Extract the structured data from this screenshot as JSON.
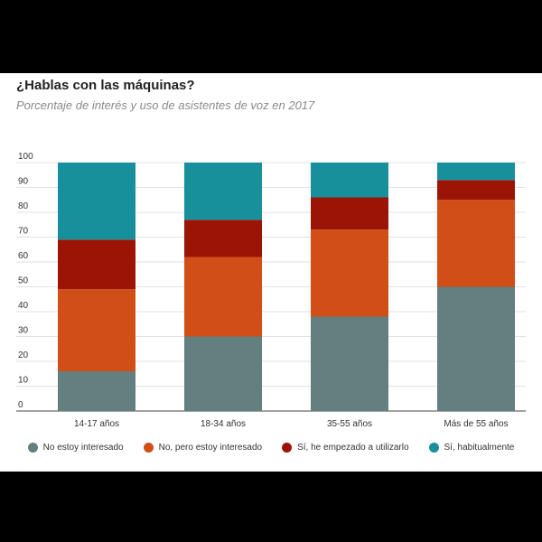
{
  "chart_data": {
    "type": "bar",
    "stacked": true,
    "title": "¿Hablas con las máquinas?",
    "subtitle": "Porcentaje de interés y uso de asistentes de voz en 2017",
    "categories": [
      "14-17 años",
      "18-34 años",
      "35-55 años",
      "Más de 55 años"
    ],
    "ylim": [
      0,
      100
    ],
    "yticks": [
      0,
      10,
      20,
      30,
      40,
      50,
      60,
      70,
      80,
      90,
      100
    ],
    "grid": true,
    "legend_position": "bottom",
    "series": [
      {
        "name": "No estoy interesado",
        "color": "#637f7f",
        "values": [
          16,
          30,
          38,
          50
        ]
      },
      {
        "name": "No, pero estoy interesado",
        "color": "#d24e17",
        "values": [
          33,
          32,
          35,
          35
        ]
      },
      {
        "name": "Sí, he empezado a utilizarlo",
        "color": "#9c1406",
        "values": [
          20,
          15,
          13,
          8
        ]
      },
      {
        "name": "Sí, habitualmente",
        "color": "#17909c",
        "values": [
          31,
          23,
          14,
          7
        ]
      }
    ]
  }
}
